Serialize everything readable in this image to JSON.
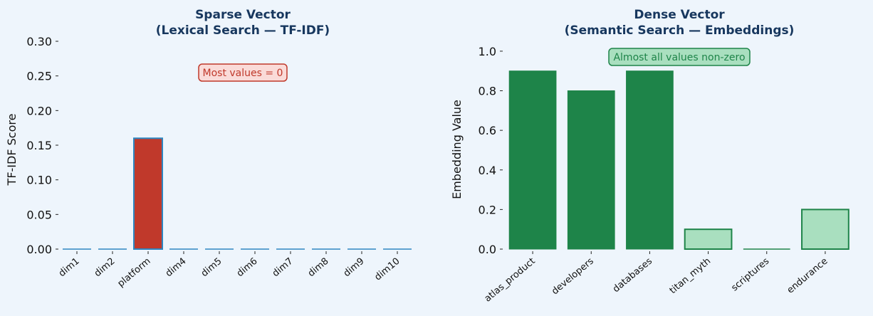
{
  "colors": {
    "background": "#eef5fc",
    "title": "#17375e",
    "sparse_bar_fill": "#c0392b",
    "sparse_bar_edge": "#2e86c1",
    "sparse_zero_line": "#2e86c1",
    "dense_high_fill": "#1e8449",
    "dense_low_fill": "#a9dfbf",
    "dense_edge": "#1e8449",
    "sparse_badge_fill": "#fadbd8",
    "sparse_badge_edge": "#c0392b",
    "sparse_badge_text": "#c0392b",
    "dense_badge_fill": "#a9dfbf",
    "dense_badge_edge": "#1e8449",
    "dense_badge_text": "#1e8449"
  },
  "chart_data": [
    {
      "type": "bar",
      "title": "Sparse Vector",
      "subtitle": "(Lexical Search — TF-IDF)",
      "xlabel": "",
      "ylabel": "TF-IDF Score",
      "categories": [
        "dim1",
        "dim2",
        "platform",
        "dim4",
        "dim5",
        "dim6",
        "dim7",
        "dim8",
        "dim9",
        "dim10"
      ],
      "values": [
        0,
        0,
        0.16,
        0,
        0,
        0,
        0,
        0,
        0,
        0
      ],
      "ylim": [
        0,
        0.3
      ],
      "yticks": [
        "0.00",
        "0.05",
        "0.10",
        "0.15",
        "0.20",
        "0.25",
        "0.30"
      ],
      "annotation": "Most values = 0",
      "grid": false,
      "legend": "none"
    },
    {
      "type": "bar",
      "title": "Dense Vector",
      "subtitle": "(Semantic Search — Embeddings)",
      "xlabel": "",
      "ylabel": "Embedding Value",
      "categories": [
        "atlas_product",
        "developers",
        "databases",
        "titan_myth",
        "scriptures",
        "endurance"
      ],
      "values": [
        0.9,
        0.8,
        0.9,
        0.1,
        0.0,
        0.2
      ],
      "ylim": [
        0,
        1.05
      ],
      "yticks": [
        "0.0",
        "0.2",
        "0.4",
        "0.6",
        "0.8",
        "1.0"
      ],
      "annotation": "Almost all values non-zero",
      "grid": false,
      "legend": "none"
    }
  ]
}
